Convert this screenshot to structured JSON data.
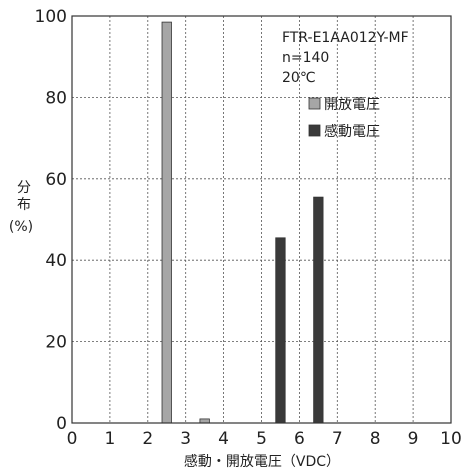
{
  "chart_data": {
    "type": "bar",
    "annotations": [
      "FTR-E1AA012Y-MF",
      "n=140",
      "20℃"
    ],
    "xlabel": "感動・開放電圧（VDC）",
    "ylabel_lines": [
      "分",
      "布",
      "(%)"
    ],
    "xlim": [
      0,
      10
    ],
    "ylim": [
      0,
      100
    ],
    "x_ticks": [
      0,
      1,
      2,
      3,
      4,
      5,
      6,
      7,
      8,
      9,
      10
    ],
    "y_ticks": [
      0,
      20,
      40,
      60,
      80,
      100
    ],
    "grid": true,
    "legend_position": "top-right",
    "bar_width": 0.25,
    "series": [
      {
        "name": "開放電圧",
        "color": "#a6a6a6",
        "points": [
          {
            "x": 2.5,
            "y": 98.5
          },
          {
            "x": 3.5,
            "y": 1
          }
        ]
      },
      {
        "name": "感動電圧",
        "color": "#3a3a3a",
        "points": [
          {
            "x": 5.5,
            "y": 45.5
          },
          {
            "x": 6.5,
            "y": 55.5
          }
        ]
      }
    ]
  }
}
